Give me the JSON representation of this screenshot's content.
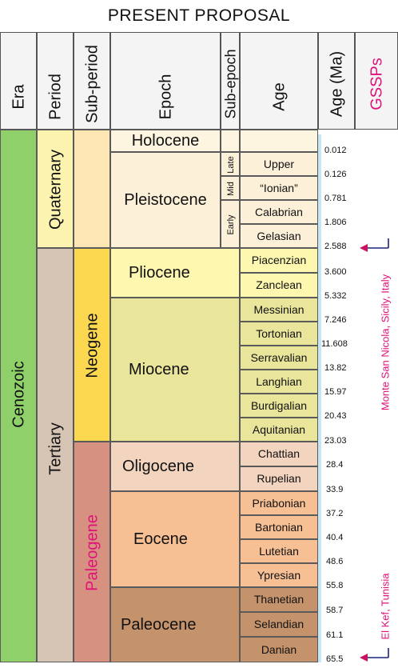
{
  "title": "PRESENT PROPOSAL",
  "headers": {
    "era": "Era",
    "period": "Period",
    "subperiod": "Sub-period",
    "epoch": "Epoch",
    "subepoch": "Sub-epoch",
    "age": "Age",
    "age_ma": "Age (Ma)",
    "gssps": "GSSPs"
  },
  "era": "Cenozoic",
  "periods": {
    "quaternary": "Quaternary",
    "tertiary": "Tertiary"
  },
  "subperiods": {
    "neogene": "Neogene",
    "paleogene": "Paleogene"
  },
  "epochs": {
    "holocene": "Holocene",
    "pleistocene": "Pleistocene",
    "pliocene": "Pliocene",
    "miocene": "Miocene",
    "oligocene": "Oligocene",
    "eocene": "Eocene",
    "paleocene": "Paleocene"
  },
  "subepochs": {
    "late": "Late",
    "mid": "Mid",
    "early": "Early"
  },
  "ages": [
    "Upper",
    "“Ionian”",
    "Calabrian",
    "Gelasian",
    "Piacenzian",
    "Zanclean",
    "Messinian",
    "Tortonian",
    "Serravalian",
    "Langhian",
    "Burdigalian",
    "Aquitanian",
    "Chattian",
    "Rupelian",
    "Priabonian",
    "Bartonian",
    "Lutetian",
    "Ypresian",
    "Thanetian",
    "Selandian",
    "Danian"
  ],
  "ticks": [
    "0.012",
    "0.126",
    "0.781",
    "1.806",
    "2.588",
    "3.600",
    "5.332",
    "7.246",
    "11.608",
    "13.82",
    "15.97",
    "20.43",
    "23.03",
    "28.4",
    "33.9",
    "37.2",
    "40.4",
    "48.6",
    "55.8",
    "58.7",
    "61.1",
    "65.5"
  ],
  "gssps": {
    "upper": "Monte San Nicola, Sicily, Italy",
    "lower": "El Kef, Tunisia"
  }
}
